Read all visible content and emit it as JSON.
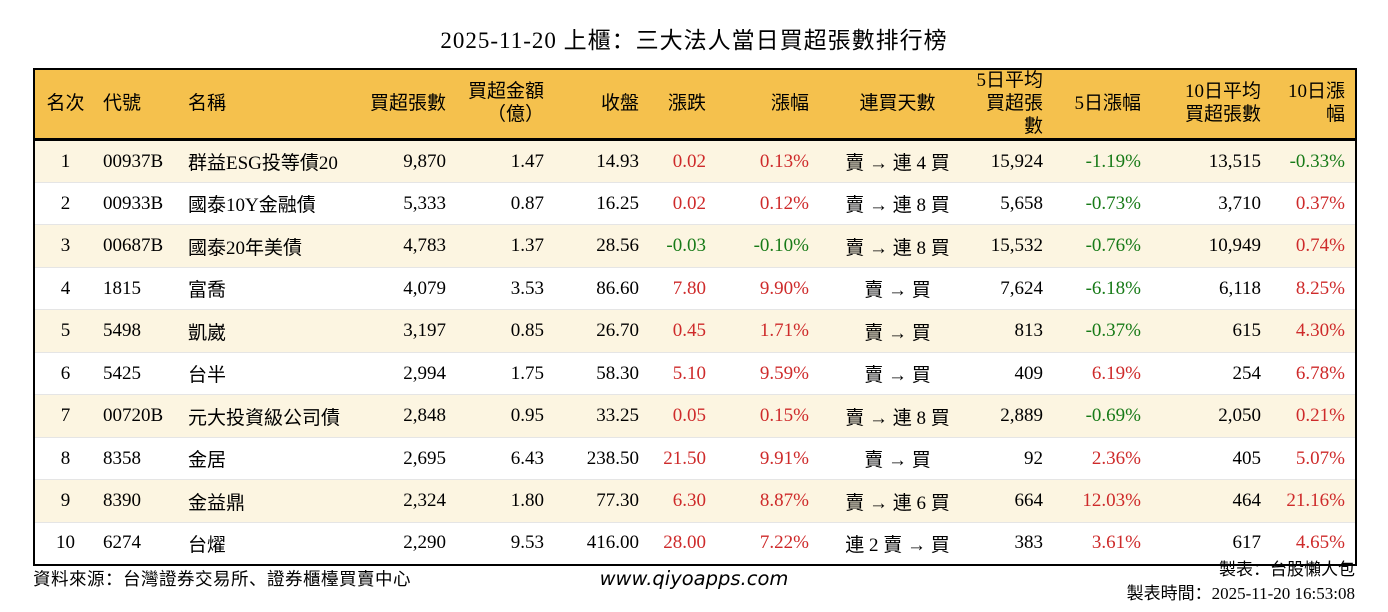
{
  "title": "2025-11-20 上櫃：三大法人當日買超張數排行榜",
  "colors": {
    "header_bg": "#F5C14D",
    "row_alt_bg": "#FCF5E1",
    "up_red": "#CE2A2A",
    "down_green": "#177A17",
    "border": "#000000"
  },
  "chart_data": {
    "type": "table",
    "title": "2025-11-20 上櫃：三大法人當日買超張數排行榜",
    "columns": [
      {
        "key": "rank",
        "label": "名次"
      },
      {
        "key": "code",
        "label": "代號"
      },
      {
        "key": "name",
        "label": "名稱"
      },
      {
        "key": "net-buy-volume",
        "label": "買超張數"
      },
      {
        "key": "net-buy-amount",
        "label": "買超金額",
        "label2": "（億）"
      },
      {
        "key": "close",
        "label": "收盤"
      },
      {
        "key": "change",
        "label": "漲跌"
      },
      {
        "key": "change-pct",
        "label": "漲幅"
      },
      {
        "key": "buy-streak",
        "label": "連買天數"
      },
      {
        "key": "avg5-volume",
        "label": "5日平均",
        "label2": "買超張數"
      },
      {
        "key": "pct5",
        "label": "5日漲幅"
      },
      {
        "key": "avg10-volume",
        "label": "10日平均",
        "label2": "買超張數"
      },
      {
        "key": "pct10",
        "label": "10日漲幅"
      }
    ],
    "rows": [
      {
        "cells": [
          {
            "v": "1"
          },
          {
            "v": "00937B"
          },
          {
            "v": "群益ESG投等債20"
          },
          {
            "v": "9,870"
          },
          {
            "v": "1.47"
          },
          {
            "v": "14.93"
          },
          {
            "v": "0.02",
            "c": "up"
          },
          {
            "v": "0.13%",
            "c": "up"
          },
          {
            "v": "賣 → 連 4 買"
          },
          {
            "v": "15,924"
          },
          {
            "v": "-1.19%",
            "c": "down"
          },
          {
            "v": "13,515"
          },
          {
            "v": "-0.33%",
            "c": "down"
          }
        ]
      },
      {
        "cells": [
          {
            "v": "2"
          },
          {
            "v": "00933B"
          },
          {
            "v": "國泰10Y金融債"
          },
          {
            "v": "5,333"
          },
          {
            "v": "0.87"
          },
          {
            "v": "16.25"
          },
          {
            "v": "0.02",
            "c": "up"
          },
          {
            "v": "0.12%",
            "c": "up"
          },
          {
            "v": "賣 → 連 8 買"
          },
          {
            "v": "5,658"
          },
          {
            "v": "-0.73%",
            "c": "down"
          },
          {
            "v": "3,710"
          },
          {
            "v": "0.37%",
            "c": "up"
          }
        ]
      },
      {
        "cells": [
          {
            "v": "3"
          },
          {
            "v": "00687B"
          },
          {
            "v": "國泰20年美債"
          },
          {
            "v": "4,783"
          },
          {
            "v": "1.37"
          },
          {
            "v": "28.56"
          },
          {
            "v": "-0.03",
            "c": "down"
          },
          {
            "v": "-0.10%",
            "c": "down"
          },
          {
            "v": "賣 → 連 8 買"
          },
          {
            "v": "15,532"
          },
          {
            "v": "-0.76%",
            "c": "down"
          },
          {
            "v": "10,949"
          },
          {
            "v": "0.74%",
            "c": "up"
          }
        ]
      },
      {
        "cells": [
          {
            "v": "4"
          },
          {
            "v": "1815"
          },
          {
            "v": "富喬"
          },
          {
            "v": "4,079"
          },
          {
            "v": "3.53"
          },
          {
            "v": "86.60"
          },
          {
            "v": "7.80",
            "c": "up"
          },
          {
            "v": "9.90%",
            "c": "up"
          },
          {
            "v": "賣 → 買"
          },
          {
            "v": "7,624"
          },
          {
            "v": "-6.18%",
            "c": "down"
          },
          {
            "v": "6,118"
          },
          {
            "v": "8.25%",
            "c": "up"
          }
        ]
      },
      {
        "cells": [
          {
            "v": "5"
          },
          {
            "v": "5498"
          },
          {
            "v": "凱崴"
          },
          {
            "v": "3,197"
          },
          {
            "v": "0.85"
          },
          {
            "v": "26.70"
          },
          {
            "v": "0.45",
            "c": "up"
          },
          {
            "v": "1.71%",
            "c": "up"
          },
          {
            "v": "賣 → 買"
          },
          {
            "v": "813"
          },
          {
            "v": "-0.37%",
            "c": "down"
          },
          {
            "v": "615"
          },
          {
            "v": "4.30%",
            "c": "up"
          }
        ]
      },
      {
        "cells": [
          {
            "v": "6"
          },
          {
            "v": "5425"
          },
          {
            "v": "台半"
          },
          {
            "v": "2,994"
          },
          {
            "v": "1.75"
          },
          {
            "v": "58.30"
          },
          {
            "v": "5.10",
            "c": "up"
          },
          {
            "v": "9.59%",
            "c": "up"
          },
          {
            "v": "賣 → 買"
          },
          {
            "v": "409"
          },
          {
            "v": "6.19%",
            "c": "up"
          },
          {
            "v": "254"
          },
          {
            "v": "6.78%",
            "c": "up"
          }
        ]
      },
      {
        "cells": [
          {
            "v": "7"
          },
          {
            "v": "00720B"
          },
          {
            "v": "元大投資級公司債"
          },
          {
            "v": "2,848"
          },
          {
            "v": "0.95"
          },
          {
            "v": "33.25"
          },
          {
            "v": "0.05",
            "c": "up"
          },
          {
            "v": "0.15%",
            "c": "up"
          },
          {
            "v": "賣 → 連 8 買"
          },
          {
            "v": "2,889"
          },
          {
            "v": "-0.69%",
            "c": "down"
          },
          {
            "v": "2,050"
          },
          {
            "v": "0.21%",
            "c": "up"
          }
        ]
      },
      {
        "cells": [
          {
            "v": "8"
          },
          {
            "v": "8358"
          },
          {
            "v": "金居"
          },
          {
            "v": "2,695"
          },
          {
            "v": "6.43"
          },
          {
            "v": "238.50"
          },
          {
            "v": "21.50",
            "c": "up"
          },
          {
            "v": "9.91%",
            "c": "up"
          },
          {
            "v": "賣 → 買"
          },
          {
            "v": "92"
          },
          {
            "v": "2.36%",
            "c": "up"
          },
          {
            "v": "405"
          },
          {
            "v": "5.07%",
            "c": "up"
          }
        ]
      },
      {
        "cells": [
          {
            "v": "9"
          },
          {
            "v": "8390"
          },
          {
            "v": "金益鼎"
          },
          {
            "v": "2,324"
          },
          {
            "v": "1.80"
          },
          {
            "v": "77.30"
          },
          {
            "v": "6.30",
            "c": "up"
          },
          {
            "v": "8.87%",
            "c": "up"
          },
          {
            "v": "賣 → 連 6 買"
          },
          {
            "v": "664"
          },
          {
            "v": "12.03%",
            "c": "up"
          },
          {
            "v": "464"
          },
          {
            "v": "21.16%",
            "c": "up"
          }
        ]
      },
      {
        "cells": [
          {
            "v": "10"
          },
          {
            "v": "6274"
          },
          {
            "v": "台燿"
          },
          {
            "v": "2,290"
          },
          {
            "v": "9.53"
          },
          {
            "v": "416.00"
          },
          {
            "v": "28.00",
            "c": "up"
          },
          {
            "v": "7.22%",
            "c": "up"
          },
          {
            "v": "連 2 賣 → 買"
          },
          {
            "v": "383"
          },
          {
            "v": "3.61%",
            "c": "up"
          },
          {
            "v": "617"
          },
          {
            "v": "4.65%",
            "c": "up"
          }
        ]
      }
    ]
  },
  "footer": {
    "source": "資料來源：台灣證券交易所、證券櫃檯買賣中心",
    "website": "www.qiyoapps.com",
    "author": "製表：台股懶人包",
    "generated": "製表時間：2025-11-20 16:53:08"
  }
}
